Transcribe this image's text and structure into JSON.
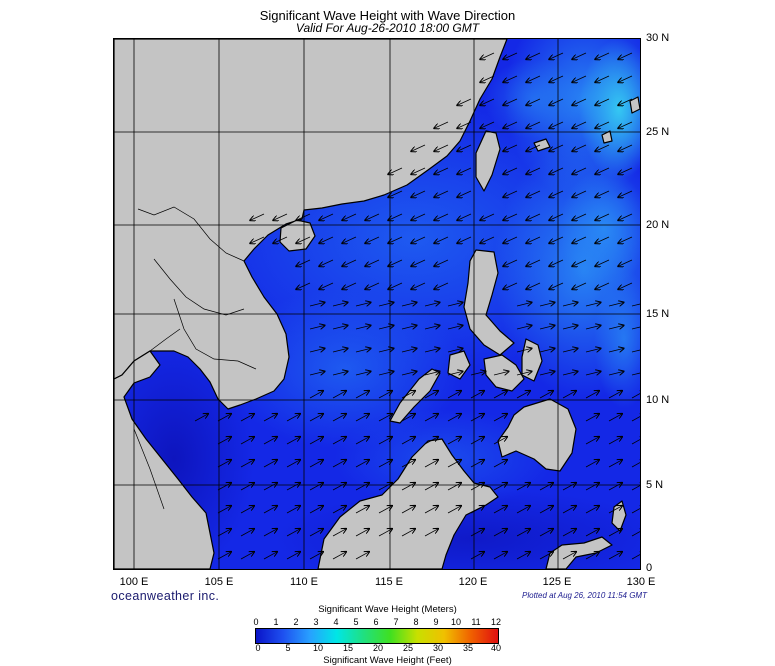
{
  "header": {
    "title": "Significant Wave Height with Wave Direction",
    "subtitle": "Valid For Aug-26-2010 18:00 GMT"
  },
  "map": {
    "lon_range": [
      99,
      130
    ],
    "lat_range": [
      0,
      30
    ],
    "lat_labels": [
      "30 N",
      "25 N",
      "20 N",
      "15 N",
      "10 N",
      "5 N",
      "0"
    ],
    "lon_labels": [
      "100 E",
      "105 E",
      "110 E",
      "115 E",
      "120 E",
      "125 E",
      "130 E"
    ],
    "colors": {
      "land": "#c4c4c4",
      "coast": "#000000",
      "grid": "#000000",
      "arrows": "#000000",
      "sea_calm": "#1428e6",
      "sea_low": "#1e5af0",
      "sea_mid": "#2a8cf5",
      "sea_high": "#35c8f2"
    }
  },
  "footer": {
    "brand": "oceanweather inc.",
    "plotted": "Plotted at Aug 26, 2010 11:54 GMT"
  },
  "legend": {
    "title_meters": "Significant Wave Height (Meters)",
    "title_feet": "Significant Wave Height (Feet)",
    "meter_ticks": [
      "0",
      "1",
      "2",
      "3",
      "4",
      "5",
      "6",
      "7",
      "8",
      "9",
      "10",
      "11",
      "12"
    ],
    "feet_ticks": [
      "0",
      "5",
      "10",
      "15",
      "20",
      "25",
      "30",
      "35",
      "40"
    ],
    "gradient": [
      "#0a14c8",
      "#1e50f0",
      "#28a0ff",
      "#00e6e6",
      "#20e080",
      "#40e020",
      "#c8e000",
      "#f0c000",
      "#f06000",
      "#e01010"
    ]
  }
}
